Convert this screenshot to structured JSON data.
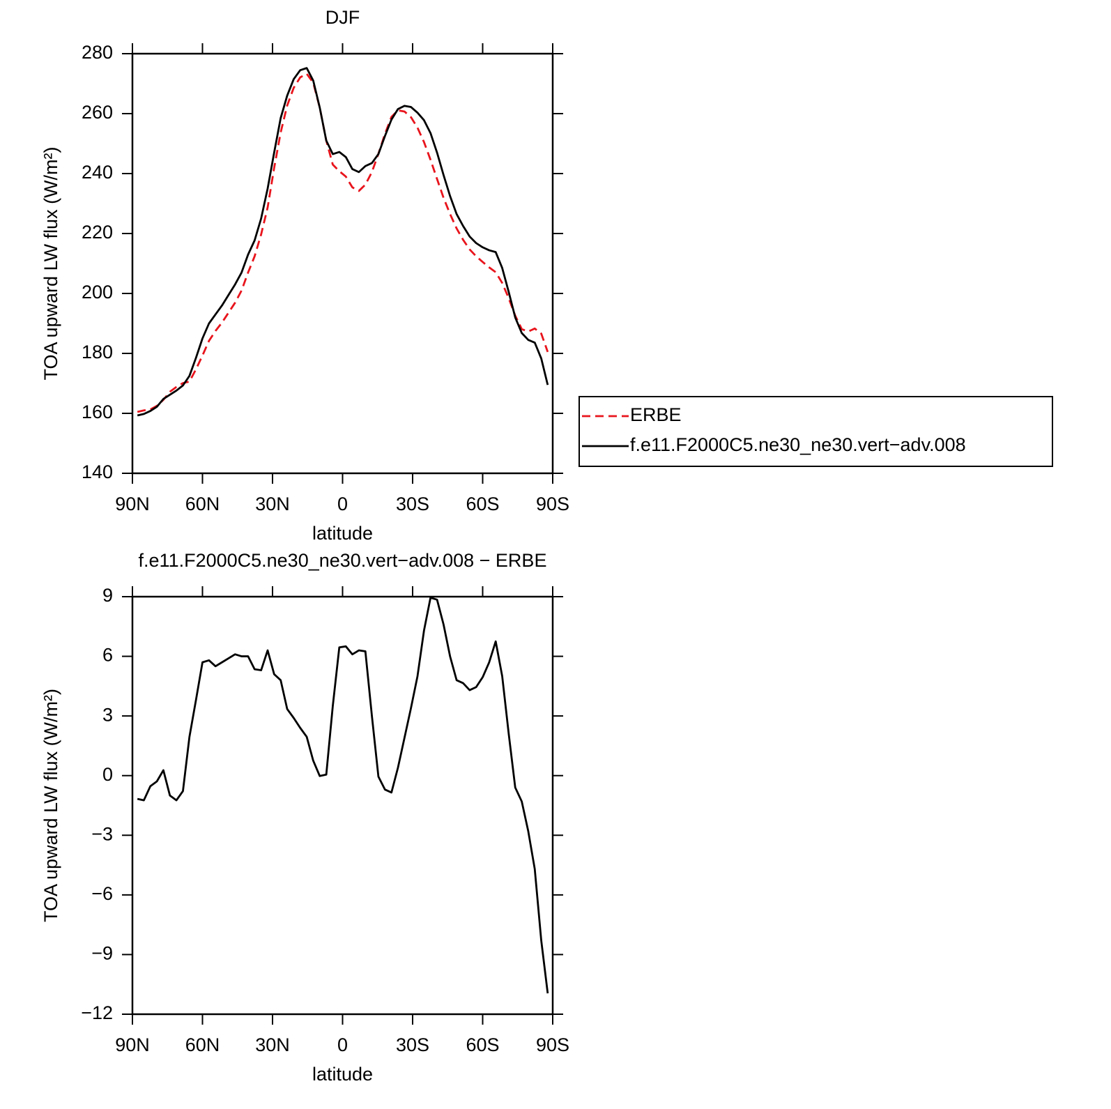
{
  "chart_data": [
    {
      "type": "line",
      "title": "DJF",
      "xlabel": "latitude",
      "ylabel": "TOA upward LW flux (W/m²)",
      "x": [
        87.86,
        85.1,
        82.31,
        79.53,
        76.74,
        73.95,
        71.16,
        68.37,
        65.58,
        62.79,
        60.0,
        57.21,
        54.42,
        51.63,
        48.84,
        46.04,
        43.25,
        40.46,
        37.67,
        34.88,
        32.09,
        29.3,
        26.51,
        23.72,
        20.93,
        18.14,
        15.35,
        12.56,
        9.77,
        6.98,
        4.19,
        1.4,
        -1.4,
        -4.19,
        -6.98,
        -9.77,
        -12.56,
        -15.35,
        -18.14,
        -20.93,
        -23.72,
        -26.51,
        -29.3,
        -32.09,
        -34.88,
        -37.67,
        -40.46,
        -43.25,
        -46.04,
        -48.84,
        -51.63,
        -54.42,
        -57.21,
        -60.0,
        -62.79,
        -65.58,
        -68.37,
        -71.16,
        -73.95,
        -76.74,
        -79.53,
        -82.31,
        -85.1,
        -87.86
      ],
      "series": [
        {
          "name": "ERBE",
          "color": "#e8141c",
          "dashed": true,
          "values": [
            160.5,
            161.0,
            161.3,
            162.5,
            164.5,
            167.2,
            168.8,
            170.1,
            170.6,
            174.7,
            179.3,
            184.2,
            187.5,
            190.3,
            193.6,
            196.9,
            201.0,
            207.0,
            212.4,
            219.7,
            228.7,
            241.9,
            253.7,
            262.7,
            268.6,
            272.1,
            273.3,
            270.3,
            262.0,
            251.0,
            243.0,
            240.8,
            239.0,
            235.4,
            234.2,
            236.3,
            240.5,
            246.6,
            253.2,
            258.9,
            261.1,
            260.7,
            258.8,
            255.3,
            250.5,
            244.6,
            238.2,
            231.9,
            226.5,
            221.7,
            217.9,
            214.7,
            212.4,
            210.5,
            208.7,
            207.1,
            203.5,
            198.4,
            192.6,
            188.1,
            187.3,
            188.3,
            186.6,
            180.5
          ]
        },
        {
          "name": "f.e11.F2000C5.ne30_ne30.vert−adv.008",
          "color": "#000000",
          "dashed": false,
          "values": [
            159.3,
            159.8,
            160.8,
            162.2,
            164.8,
            166.2,
            167.6,
            169.3,
            172.5,
            178.5,
            185.0,
            190.0,
            193.0,
            196.0,
            199.5,
            203.0,
            207.0,
            213.0,
            217.7,
            225.0,
            235.0,
            247.0,
            258.5,
            266.0,
            271.5,
            274.5,
            275.2,
            271.0,
            262.0,
            251.0,
            246.5,
            247.2,
            245.5,
            241.5,
            240.5,
            242.5,
            243.5,
            246.5,
            252.5,
            258.0,
            261.5,
            262.6,
            262.2,
            260.3,
            257.8,
            253.5,
            247.0,
            239.5,
            232.5,
            226.5,
            222.5,
            219.0,
            216.8,
            215.4,
            214.4,
            213.8,
            208.5,
            200.5,
            192.0,
            186.8,
            184.5,
            183.6,
            178.3,
            169.5
          ]
        }
      ],
      "xlim": [
        90,
        -90
      ],
      "xticks": [
        {
          "value": 90,
          "label": "90N"
        },
        {
          "value": 60,
          "label": "60N"
        },
        {
          "value": 30,
          "label": "30N"
        },
        0,
        {
          "value": -30,
          "label": "30S"
        },
        {
          "value": -60,
          "label": "60S"
        },
        {
          "value": -90,
          "label": "90S"
        }
      ],
      "ylim": [
        140,
        280
      ],
      "yticks": [
        140,
        160,
        180,
        200,
        220,
        240,
        260,
        280
      ],
      "legend": "right"
    },
    {
      "type": "line",
      "title": "f.e11.F2000C5.ne30_ne30.vert−adv.008 − ERBE",
      "xlabel": "latitude",
      "ylabel": "TOA upward LW flux (W/m²)",
      "x": [
        87.86,
        85.1,
        82.31,
        79.53,
        76.74,
        73.95,
        71.16,
        68.37,
        65.58,
        62.79,
        60.0,
        57.21,
        54.42,
        51.63,
        48.84,
        46.04,
        43.25,
        40.46,
        37.67,
        34.88,
        32.09,
        29.3,
        26.51,
        23.72,
        20.93,
        18.14,
        15.35,
        12.56,
        9.77,
        6.98,
        4.19,
        1.4,
        -1.4,
        -4.19,
        -6.98,
        -9.77,
        -12.56,
        -15.35,
        -18.14,
        -20.93,
        -23.72,
        -26.51,
        -29.3,
        -32.09,
        -34.88,
        -37.67,
        -40.46,
        -43.25,
        -46.04,
        -48.84,
        -51.63,
        -54.42,
        -57.21,
        -60.0,
        -62.79,
        -65.58,
        -68.37,
        -71.16,
        -73.95,
        -76.74,
        -79.53,
        -82.31,
        -85.1,
        -87.86
      ],
      "series": [
        {
          "color": "#000000",
          "dashed": false,
          "values": [
            -1.17,
            -1.24,
            -0.53,
            -0.29,
            0.27,
            -1.0,
            -1.24,
            -0.78,
            1.95,
            3.8,
            5.7,
            5.8,
            5.5,
            5.7,
            5.9,
            6.1,
            6.0,
            6.0,
            5.35,
            5.3,
            6.3,
            5.1,
            4.8,
            3.35,
            2.9,
            2.4,
            1.95,
            0.75,
            -0.02,
            0.05,
            3.5,
            6.45,
            6.5,
            6.1,
            6.3,
            6.25,
            3.0,
            -0.05,
            -0.7,
            -0.85,
            0.4,
            1.9,
            3.4,
            5.0,
            7.3,
            8.95,
            8.85,
            7.6,
            6.0,
            4.8,
            4.65,
            4.3,
            4.45,
            4.95,
            5.7,
            6.75,
            5.0,
            2.1,
            -0.6,
            -1.3,
            -2.8,
            -4.7,
            -8.3,
            -10.95
          ]
        }
      ],
      "xlim": [
        90,
        -90
      ],
      "xticks": [
        {
          "value": 90,
          "label": "90N"
        },
        {
          "value": 60,
          "label": "60N"
        },
        {
          "value": 30,
          "label": "30N"
        },
        0,
        {
          "value": -30,
          "label": "30S"
        },
        {
          "value": -60,
          "label": "60S"
        },
        {
          "value": -90,
          "label": "90S"
        }
      ],
      "ylim": [
        -12,
        9
      ],
      "yticks": [
        {
          "value": -12,
          "label": "−12"
        },
        {
          "value": -9,
          "label": "−9"
        },
        {
          "value": -6,
          "label": "−6"
        },
        {
          "value": -3,
          "label": "−3"
        },
        0,
        3,
        6,
        9
      ]
    }
  ]
}
